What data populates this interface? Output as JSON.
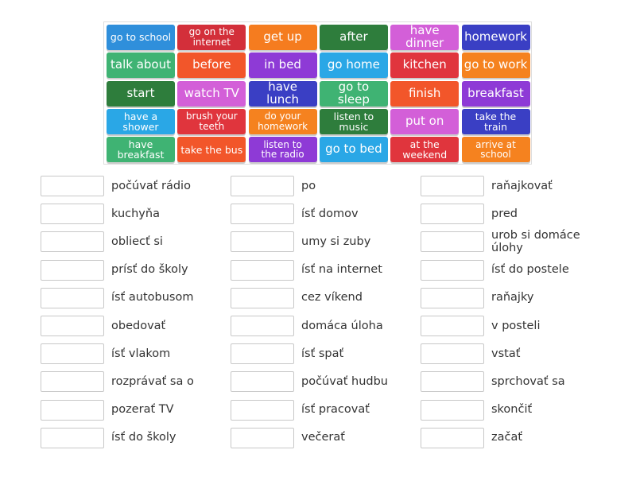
{
  "tiles": [
    {
      "text": "go to school",
      "color": "#2f8fdb"
    },
    {
      "text": "go on the internet",
      "color": "#d32f3a"
    },
    {
      "text": "get up",
      "color": "#f57c1f"
    },
    {
      "text": "after",
      "color": "#2e7d3c"
    },
    {
      "text": "have dinner",
      "color": "#d35fd8"
    },
    {
      "text": "homework",
      "color": "#3a3fc4"
    },
    {
      "text": "talk about",
      "color": "#3fb373"
    },
    {
      "text": "before",
      "color": "#f2562a"
    },
    {
      "text": "in bed",
      "color": "#8e3ad6"
    },
    {
      "text": "go home",
      "color": "#2aa7e6"
    },
    {
      "text": "kitchen",
      "color": "#e0353d"
    },
    {
      "text": "go to work",
      "color": "#f5821f"
    },
    {
      "text": "start",
      "color": "#2e7d3c"
    },
    {
      "text": "watch TV",
      "color": "#d35fd8"
    },
    {
      "text": "have lunch",
      "color": "#3a3fc4"
    },
    {
      "text": "go to sleep",
      "color": "#3fb373"
    },
    {
      "text": "finish",
      "color": "#f2562a"
    },
    {
      "text": "breakfast",
      "color": "#8e3ad6"
    },
    {
      "text": "have a shower",
      "color": "#2aa7e6"
    },
    {
      "text": "brush your teeth",
      "color": "#e0353d"
    },
    {
      "text": "do your homework",
      "color": "#f5821f"
    },
    {
      "text": "listen to music",
      "color": "#2e7d3c"
    },
    {
      "text": "put on",
      "color": "#d35fd8"
    },
    {
      "text": "take the train",
      "color": "#3a3fc4"
    },
    {
      "text": "have breakfast",
      "color": "#3fb373"
    },
    {
      "text": "take the bus",
      "color": "#f2562a"
    },
    {
      "text": "listen to the radio",
      "color": "#8e3ad6"
    },
    {
      "text": "go to bed",
      "color": "#2aa7e6"
    },
    {
      "text": "at the weekend",
      "color": "#e0353d"
    },
    {
      "text": "arrive at school",
      "color": "#f5821f"
    }
  ],
  "columns": [
    [
      "počúvať rádio",
      "kuchyňa",
      "obliecť si",
      "prísť do školy",
      "ísť autobusom",
      "obedovať",
      "ísť vlakom",
      "rozprávať sa o",
      "pozerať TV",
      "ísť do školy"
    ],
    [
      "po",
      "ísť domov",
      "umy si zuby",
      "ísť na internet",
      "cez víkend",
      "domáca úloha",
      "ísť spať",
      "počúvať hudbu",
      "ísť pracovať",
      "večerať"
    ],
    [
      "raňajkovať",
      "pred",
      "urob si domáce úlohy",
      "ísť do postele",
      "raňajky",
      "v posteli",
      "vstať",
      "sprchovať sa",
      "skončiť",
      "začať"
    ]
  ]
}
